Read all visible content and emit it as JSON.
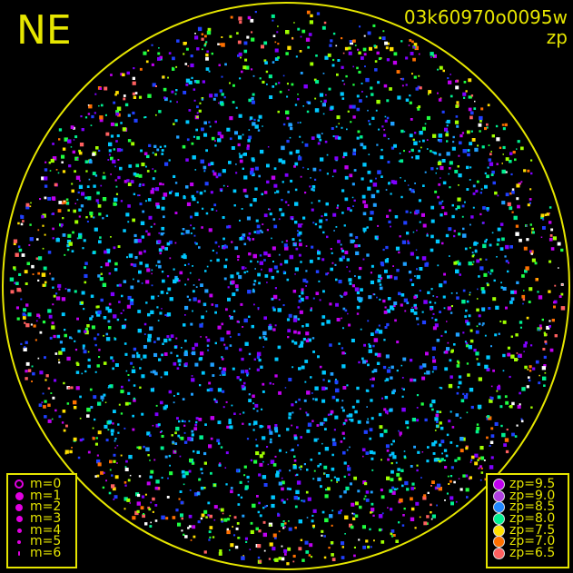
{
  "direction_label": "NE",
  "title": "03k60970o0095w",
  "subtitle": "zp",
  "magnitude_legend": [
    {
      "label": "m=0",
      "symbol": "ring"
    },
    {
      "label": "m=1",
      "symbol": "dot"
    },
    {
      "label": "m=2",
      "symbol": "dot"
    },
    {
      "label": "m=3",
      "symbol": "dot"
    },
    {
      "label": "m=4",
      "symbol": "dot"
    },
    {
      "label": "m=5",
      "symbol": "dot"
    },
    {
      "label": "m=6",
      "symbol": "dot"
    }
  ],
  "magnitude_symbol_color": "#e000e0",
  "zp_legend": [
    {
      "label": "zp=9.5",
      "color": "#c000f0"
    },
    {
      "label": "zp=9.0",
      "color": "#b040e0"
    },
    {
      "label": "zp=8.5",
      "color": "#2088ff"
    },
    {
      "label": "zp=8.0",
      "color": "#00f090"
    },
    {
      "label": "zp=7.5",
      "color": "#ffe000"
    },
    {
      "label": "zp=7.0",
      "color": "#ff7000"
    },
    {
      "label": "zp=6.5",
      "color": "#ff6060"
    }
  ],
  "horizon_color": "#e6e600",
  "star_colors": [
    "#00c8ff",
    "#00c8ff",
    "#00c8ff",
    "#20a0ff",
    "#2040ff",
    "#8000ff",
    "#c000f0",
    "#00f090",
    "#20ff40",
    "#a0ff00",
    "#ffe000",
    "#ff7000",
    "#ff6060",
    "#ffffff"
  ]
}
